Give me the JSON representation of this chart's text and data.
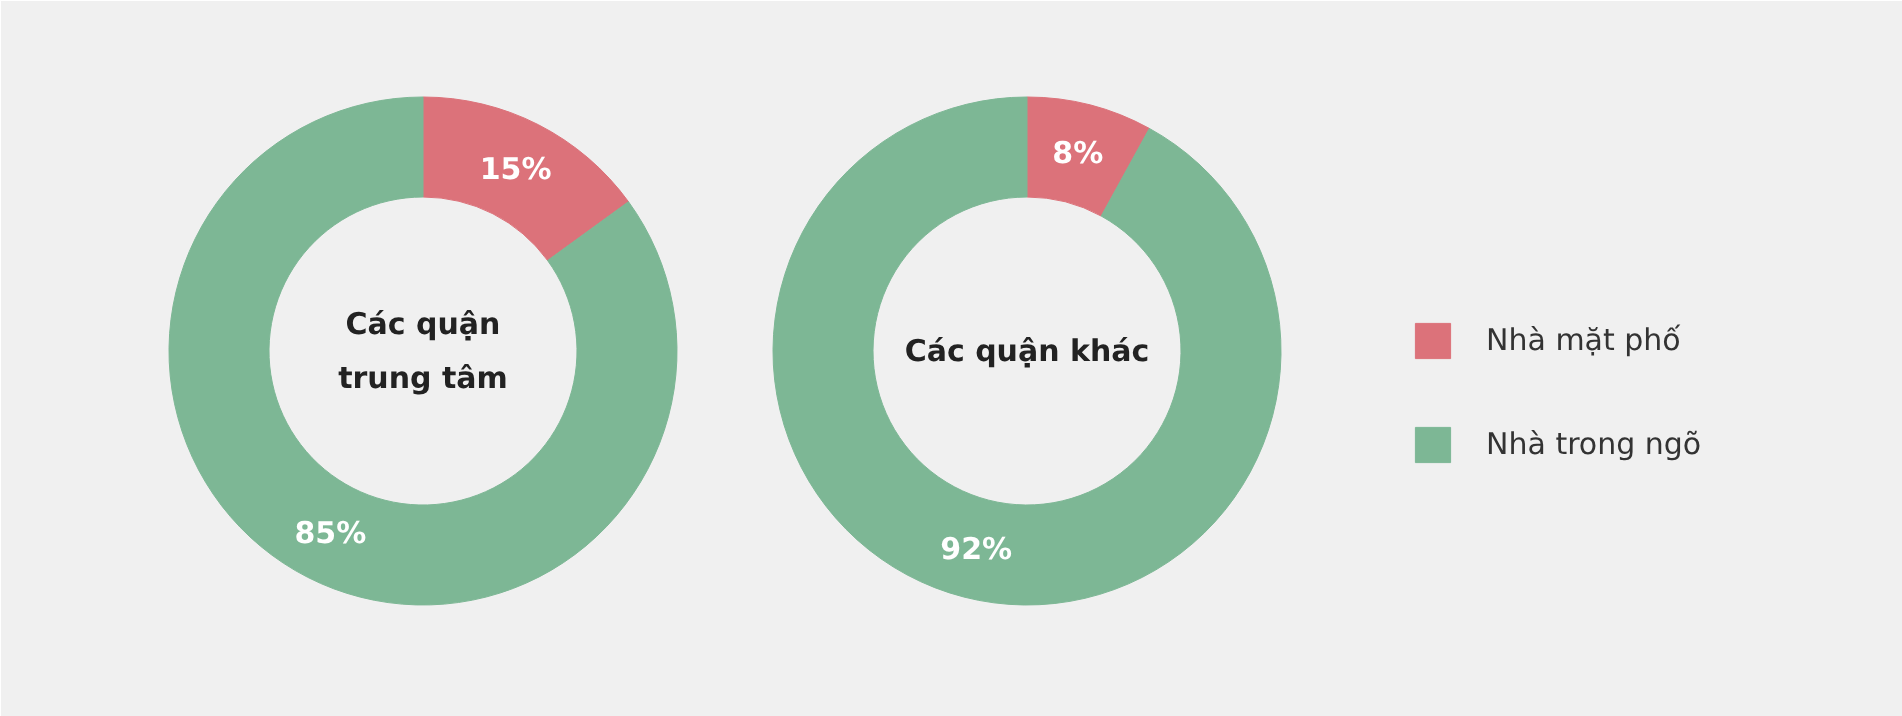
{
  "chart_data": [
    {
      "type": "donut",
      "title": "Các quận trung tâm",
      "categories": [
        "Nhà mặt phố",
        "Nhà trong ngõ"
      ],
      "values": [
        15,
        85
      ],
      "value_labels": [
        "15%",
        "85%"
      ],
      "colors": [
        "#dc727a",
        "#7db795"
      ],
      "legend": "right"
    },
    {
      "type": "donut",
      "title": "Các quận khác",
      "values": [
        8,
        92
      ],
      "value_labels": [
        "8%",
        "92%"
      ],
      "colors": [
        "#dc727a",
        "#7db795"
      ]
    }
  ]
}
